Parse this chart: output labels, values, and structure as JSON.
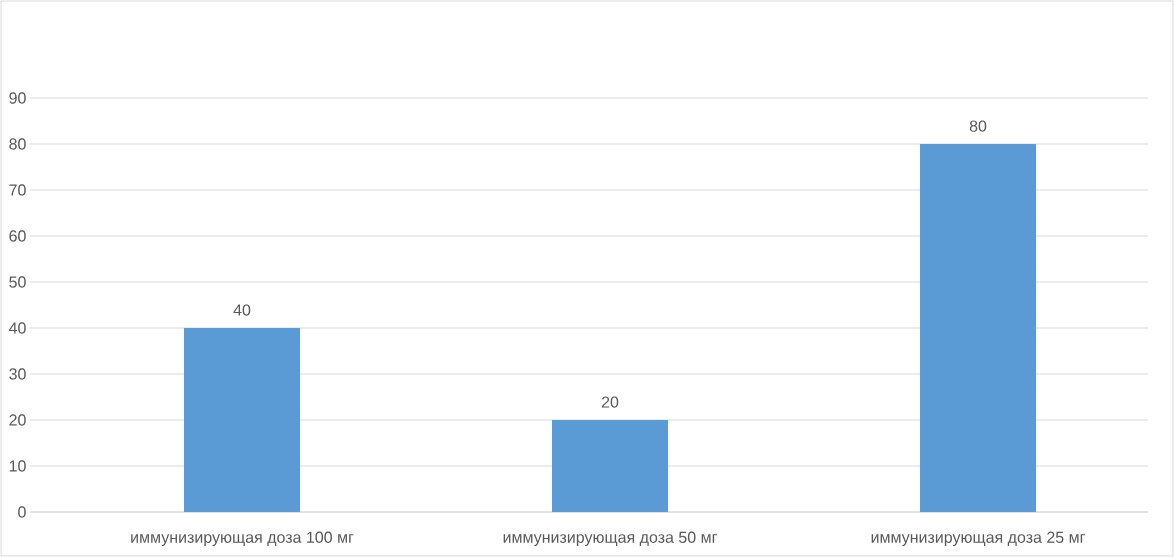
{
  "chart_data": {
    "type": "bar",
    "categories": [
      "иммунизирующая доза 100 мг",
      "иммунизирующая доза 50 мг",
      "иммунизирующая доза 25 мг"
    ],
    "values": [
      40,
      20,
      80
    ],
    "color": "#5b9bd5",
    "ylim": [
      0,
      90
    ],
    "yticks": [
      0,
      10,
      20,
      30,
      40,
      50,
      60,
      70,
      80,
      90
    ],
    "grid": "y",
    "data_labels": true
  }
}
